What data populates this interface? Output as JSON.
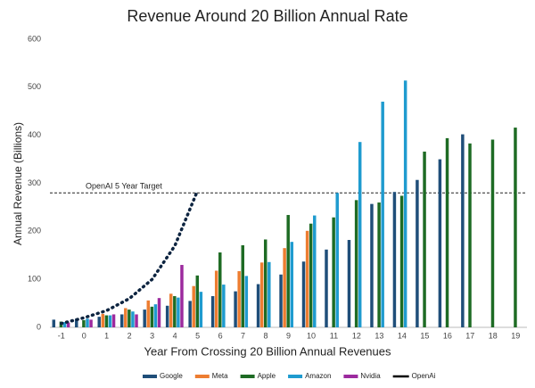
{
  "chart_data": {
    "type": "bar",
    "title": "Revenue Around 20 Billion Annual Rate",
    "x_label": "Year From Crossing 20 Billion Annual Revenues",
    "y_label": "Annual Revenue (Billions)",
    "categories": [
      "-1",
      "0",
      "1",
      "2",
      "3",
      "4",
      "5",
      "6",
      "7",
      "8",
      "9",
      "10",
      "11",
      "12",
      "13",
      "14",
      "15",
      "16",
      "17",
      "18",
      "19"
    ],
    "ylim": [
      0,
      600
    ],
    "yticks": [
      0,
      100,
      200,
      300,
      400,
      500,
      600
    ],
    "grid": false,
    "series": [
      {
        "name": "Google",
        "color": "#1f4e79",
        "values": [
          16,
          18,
          22,
          27,
          37,
          45,
          55,
          65,
          75,
          90,
          110,
          137,
          162,
          182,
          257,
          282,
          307,
          350,
          402,
          null,
          null
        ]
      },
      {
        "name": "Meta",
        "color": "#ed7d31",
        "values": [
          null,
          null,
          28,
          40,
          56,
          70,
          86,
          118,
          117,
          135,
          165,
          201,
          null,
          null,
          null,
          null,
          null,
          null,
          null,
          null,
          null
        ]
      },
      {
        "name": "Apple",
        "color": "#1e6b24",
        "values": [
          12,
          15,
          25,
          37,
          43,
          65,
          108,
          156,
          171,
          183,
          234,
          216,
          229,
          265,
          260,
          274,
          366,
          394,
          383,
          391,
          416
        ]
      },
      {
        "name": "Amazon",
        "color": "#1f9bcf",
        "values": [
          11,
          18,
          25,
          33,
          48,
          62,
          74,
          89,
          107,
          136,
          178,
          233,
          280,
          386,
          470,
          514,
          null,
          null,
          null,
          null,
          null
        ]
      },
      {
        "name": "Nvidia",
        "color": "#9c2a9e",
        "values": [
          10,
          16,
          27,
          27,
          61,
          130,
          null,
          null,
          null,
          null,
          null,
          null,
          null,
          null,
          null,
          null,
          null,
          null,
          null,
          null,
          null
        ]
      },
      {
        "name": "OpenAi",
        "type": "line",
        "color": "#0d2440",
        "values": [
          8,
          20,
          35,
          60,
          100,
          170,
          285,
          null,
          null,
          null,
          null,
          null,
          null,
          null,
          null,
          null,
          null,
          null,
          null,
          null,
          null
        ]
      }
    ],
    "annotations": [
      {
        "label": "OpenAI 5 Year Target",
        "value": 280
      }
    ]
  }
}
